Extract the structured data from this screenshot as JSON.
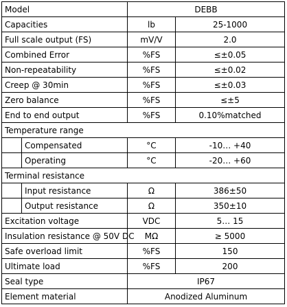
{
  "rows": [
    {
      "param": "Model",
      "unit": "",
      "value": "DEBB"
    },
    {
      "param": "Capacities",
      "unit": "lb",
      "value": "25-1000"
    },
    {
      "param": "Full scale output (FS)",
      "unit": "mV/V",
      "value": "2.0"
    },
    {
      "param": "Combined Error",
      "unit": "%FS",
      "value": "≤±0.05"
    },
    {
      "param": "Non-repeatability",
      "unit": "%FS",
      "value": "≤±0.02"
    },
    {
      "param": "Creep @ 30min",
      "unit": "%FS",
      "value": "≤±0.03"
    },
    {
      "param": "Zero balance",
      "unit": "%FS",
      "value": "≤±5"
    },
    {
      "param": "End to end output",
      "unit": "%FS",
      "value": "0.10%matched"
    }
  ],
  "temperature": {
    "heading": "Temperature range",
    "compensated": {
      "label": "Compensated",
      "unit": "°C",
      "value": "-10… +40"
    },
    "operating": {
      "label": "Operating",
      "unit": "°C",
      "value": "-20… +60"
    }
  },
  "terminal": {
    "heading": "Terminal resistance",
    "input": {
      "label": "Input resistance",
      "unit": "Ω",
      "value": "386±50"
    },
    "output": {
      "label": "Output resistance",
      "unit": "Ω",
      "value": "350±10"
    }
  },
  "rows2": [
    {
      "param": "Excitation voltage",
      "unit": "VDC",
      "value": "5… 15"
    },
    {
      "param": "Insulation resistance @ 50V DC",
      "unit": "MΩ",
      "value": "≥ 5000"
    },
    {
      "param": "Safe overload limit",
      "unit": "%FS",
      "value": "150"
    },
    {
      "param": "Ultimate load",
      "unit": "%FS",
      "value": "200"
    }
  ],
  "seal": {
    "param": "Seal type",
    "value": "IP67"
  },
  "material": {
    "param": "Element material",
    "value": "Anodized Aluminum"
  }
}
